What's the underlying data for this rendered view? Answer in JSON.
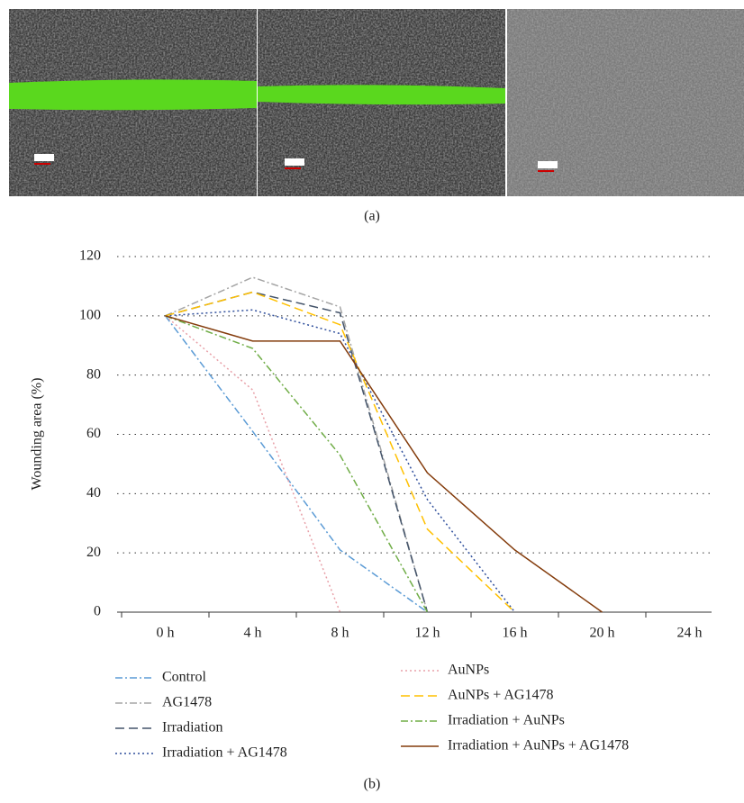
{
  "panel_a_label": "(a)",
  "panel_b_label": "(b)",
  "chart_data": {
    "type": "line",
    "y_label": "Wounding area (%)",
    "categories": [
      "0 h",
      "4 h",
      "8 h",
      "12 h",
      "16 h",
      "20 h",
      "24 h"
    ],
    "ylim": [
      0,
      120
    ],
    "yticks": [
      0,
      20,
      40,
      60,
      80,
      100,
      120
    ],
    "grid": true,
    "series": [
      {
        "name": "Control",
        "color": "#5b9bd5",
        "dash": "dashdot",
        "values": [
          100,
          61,
          21,
          0,
          null,
          null,
          null
        ]
      },
      {
        "name": "AG1478",
        "color": "#a5a5a5",
        "dash": "dashdot",
        "values": [
          100,
          113,
          103,
          0,
          null,
          null,
          null
        ]
      },
      {
        "name": "Irradiation",
        "color": "#44546a",
        "dash": "dash",
        "values": [
          100,
          108,
          101,
          0,
          null,
          null,
          null
        ]
      },
      {
        "name": "Irradiation + AG1478",
        "color": "#2f4f9c",
        "dash": "dot",
        "values": [
          100,
          102,
          94,
          38,
          0,
          null,
          null
        ]
      },
      {
        "name": "AuNPs",
        "color": "#e8a0a8",
        "dash": "dot",
        "values": [
          100,
          75,
          0,
          null,
          null,
          null,
          null
        ]
      },
      {
        "name": "AuNPs + AG1478",
        "color": "#ffc000",
        "dash": "dash",
        "values": [
          100,
          108,
          97,
          28,
          0,
          null,
          null
        ]
      },
      {
        "name": "Irradiation + AuNPs",
        "color": "#70ad47",
        "dash": "dashdot",
        "values": [
          100,
          89,
          53,
          0,
          null,
          null,
          null
        ]
      },
      {
        "name": "Irradiation + AuNPs + AG1478",
        "color": "#843c0c",
        "dash": "solid",
        "values": [
          100,
          91.5,
          91.5,
          47,
          21,
          0,
          null
        ]
      }
    ]
  }
}
